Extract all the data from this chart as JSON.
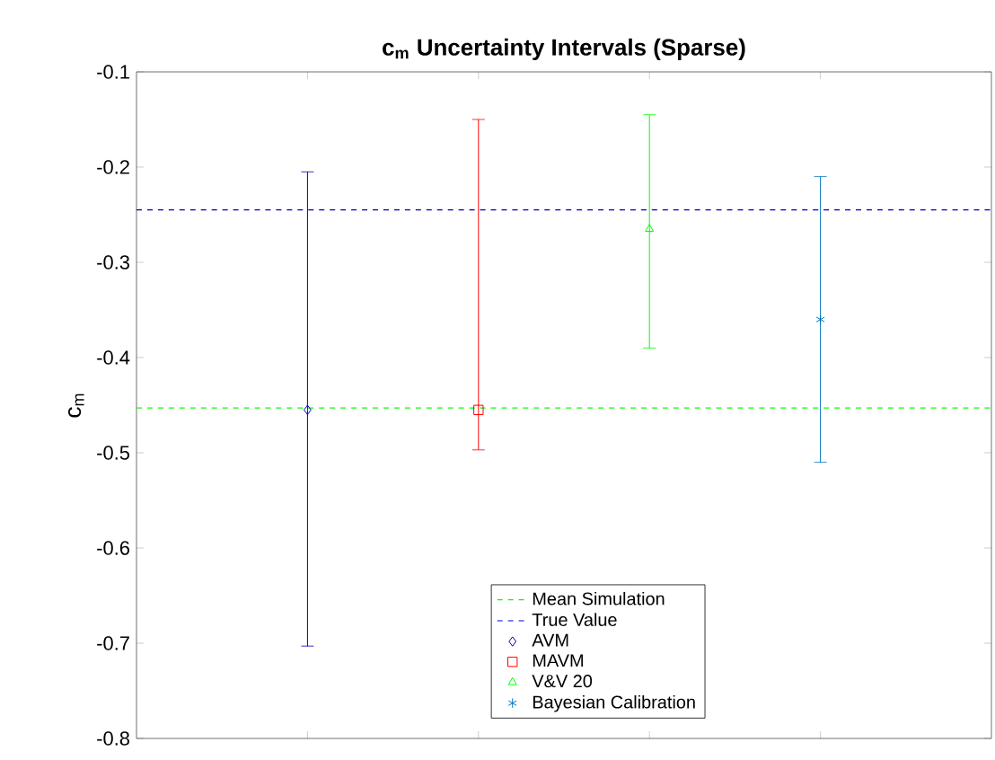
{
  "chart_data": {
    "type": "scatter",
    "title": "**c$_{m}$ Uncertainty Intervals (Sparse)**",
    "ylabel": "c$_{m}$",
    "categories": [
      null,
      null,
      null,
      null
    ],
    "ylim": [
      -0.8,
      -0.1
    ],
    "yticks": [
      -0.8,
      -0.7,
      -0.6,
      -0.5,
      -0.4,
      -0.3,
      -0.2,
      -0.1
    ],
    "tick_labels": "y",
    "grid": false,
    "legend": "bottom",
    "ref_lines": [
      {
        "axis": "y",
        "value": -0.453,
        "label": "Mean Simulation",
        "color": "#00ff00",
        "line_style": "dashed"
      },
      {
        "axis": "y",
        "value": -0.245,
        "label": "True Value",
        "color": "#0000cc",
        "line_style": "dashed"
      }
    ],
    "series": [
      {
        "name": "AVM",
        "color": "#0000b4",
        "marker": "diamond",
        "values": [
          -0.455,
          null,
          null,
          null
        ],
        "errors": [
          [
            -0.703,
            -0.205
          ],
          null,
          null,
          null
        ]
      },
      {
        "name": "MAVM",
        "color": "#ff0000",
        "marker": "square",
        "values": [
          null,
          -0.455,
          null,
          null
        ],
        "errors": [
          null,
          [
            -0.497,
            -0.15
          ],
          null,
          null
        ]
      },
      {
        "name": "V&V 20",
        "color": "#00ff00",
        "marker": "triangle",
        "values": [
          null,
          null,
          -0.265,
          null
        ],
        "errors": [
          null,
          null,
          [
            -0.39,
            -0.145
          ],
          null
        ]
      },
      {
        "name": "Bayesian Calibration",
        "color": "#0072bd",
        "marker": "cross",
        "values": [
          null,
          null,
          null,
          -0.36
        ],
        "errors": [
          null,
          null,
          null,
          [
            -0.51,
            -0.21
          ]
        ]
      }
    ]
  }
}
